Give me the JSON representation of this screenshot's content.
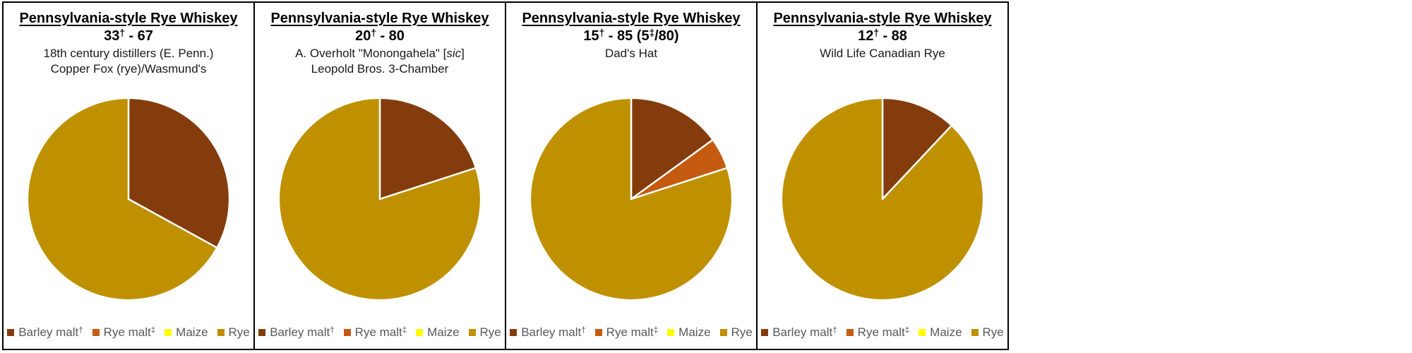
{
  "page": {
    "background": "#FFFFFF",
    "border_color": "#000000"
  },
  "palette": {
    "barley_malt": "#843C0C",
    "rye_malt": "#C55A11",
    "maize": "#FFFF00",
    "rye": "#BF9000",
    "legend_text": "#595959"
  },
  "chart_data": [
    {
      "type": "pie",
      "title": "Pennsylvania-style Rye Whiskey",
      "ratio": [
        {
          "text": "33"
        },
        {
          "text": "†",
          "sup": true
        },
        {
          "text": " - 67"
        }
      ],
      "subtitle_lines": [
        [
          {
            "text": "18th century distillers (E. Penn.)"
          }
        ],
        [
          {
            "text": "Copper Fox (rye)/Wasmund's"
          }
        ]
      ],
      "start_angle_deg": 0,
      "direction": "clockwise",
      "slices": [
        {
          "label": "Barley malt†",
          "value": 33,
          "color": "#843C0C"
        },
        {
          "label": "Rye",
          "value": 67,
          "color": "#BF9000"
        }
      ],
      "legend": [
        {
          "label": [
            {
              "text": "Barley malt"
            },
            {
              "text": "†",
              "sup": true
            }
          ],
          "color": "#843C0C"
        },
        {
          "label": [
            {
              "text": "Rye malt"
            },
            {
              "text": "‡",
              "sup": true
            }
          ],
          "color": "#C55A11"
        },
        {
          "label": [
            {
              "text": "Maize"
            }
          ],
          "color": "#FFFF00"
        },
        {
          "label": [
            {
              "text": "Rye"
            }
          ],
          "color": "#BF9000"
        }
      ]
    },
    {
      "type": "pie",
      "title": "Pennsylvania-style Rye Whiskey",
      "ratio": [
        {
          "text": "20"
        },
        {
          "text": "†",
          "sup": true
        },
        {
          "text": " - 80"
        }
      ],
      "subtitle_lines": [
        [
          {
            "text": "A. Overholt \"Monongahela\" ["
          },
          {
            "text": "sic",
            "italic": true
          },
          {
            "text": "]"
          }
        ],
        [
          {
            "text": "Leopold Bros. 3-Chamber"
          }
        ]
      ],
      "start_angle_deg": 0,
      "direction": "clockwise",
      "slices": [
        {
          "label": "Barley malt†",
          "value": 20,
          "color": "#843C0C"
        },
        {
          "label": "Rye",
          "value": 80,
          "color": "#BF9000"
        }
      ],
      "legend": [
        {
          "label": [
            {
              "text": "Barley malt"
            },
            {
              "text": "†",
              "sup": true
            }
          ],
          "color": "#843C0C"
        },
        {
          "label": [
            {
              "text": "Rye malt"
            },
            {
              "text": "‡",
              "sup": true
            }
          ],
          "color": "#C55A11"
        },
        {
          "label": [
            {
              "text": "Maize"
            }
          ],
          "color": "#FFFF00"
        },
        {
          "label": [
            {
              "text": "Rye"
            }
          ],
          "color": "#BF9000"
        }
      ]
    },
    {
      "type": "pie",
      "title": "Pennsylvania-style Rye Whiskey",
      "ratio": [
        {
          "text": "15"
        },
        {
          "text": "†",
          "sup": true
        },
        {
          "text": " - 85 (5"
        },
        {
          "text": "‡",
          "sup": true
        },
        {
          "text": "/80)"
        }
      ],
      "subtitle_lines": [
        [
          {
            "text": "Dad's Hat"
          }
        ]
      ],
      "start_angle_deg": 0,
      "direction": "clockwise",
      "slices": [
        {
          "label": "Barley malt†",
          "value": 15,
          "color": "#843C0C"
        },
        {
          "label": "Rye malt‡",
          "value": 5,
          "color": "#C55A11"
        },
        {
          "label": "Rye",
          "value": 80,
          "color": "#BF9000"
        }
      ],
      "legend": [
        {
          "label": [
            {
              "text": "Barley malt"
            },
            {
              "text": "†",
              "sup": true
            }
          ],
          "color": "#843C0C"
        },
        {
          "label": [
            {
              "text": "Rye malt"
            },
            {
              "text": "‡",
              "sup": true
            }
          ],
          "color": "#C55A11"
        },
        {
          "label": [
            {
              "text": "Maize"
            }
          ],
          "color": "#FFFF00"
        },
        {
          "label": [
            {
              "text": "Rye"
            }
          ],
          "color": "#BF9000"
        }
      ]
    },
    {
      "type": "pie",
      "title": "Pennsylvania-style Rye Whiskey",
      "ratio": [
        {
          "text": "12"
        },
        {
          "text": "†",
          "sup": true
        },
        {
          "text": " - 88"
        }
      ],
      "subtitle_lines": [
        [
          {
            "text": "Wild Life Canadian Rye"
          }
        ]
      ],
      "start_angle_deg": 0,
      "direction": "clockwise",
      "slices": [
        {
          "label": "Barley malt†",
          "value": 12,
          "color": "#843C0C"
        },
        {
          "label": "Rye",
          "value": 88,
          "color": "#BF9000"
        }
      ],
      "legend": [
        {
          "label": [
            {
              "text": "Barley malt"
            },
            {
              "text": "†",
              "sup": true
            }
          ],
          "color": "#843C0C"
        },
        {
          "label": [
            {
              "text": "Rye malt"
            },
            {
              "text": "‡",
              "sup": true
            }
          ],
          "color": "#C55A11"
        },
        {
          "label": [
            {
              "text": "Maize"
            }
          ],
          "color": "#FFFF00"
        },
        {
          "label": [
            {
              "text": "Rye"
            }
          ],
          "color": "#BF9000"
        }
      ]
    }
  ]
}
